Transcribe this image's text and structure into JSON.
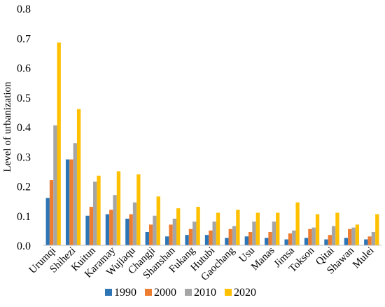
{
  "chart_data": {
    "type": "bar",
    "ylabel": "Level of urbanization",
    "ylim": [
      0,
      0.8
    ],
    "yticks": [
      "0.0",
      "0.1",
      "0.2",
      "0.3",
      "0.4",
      "0.5",
      "0.6",
      "0.7",
      "0.8"
    ],
    "grid": false,
    "legend_position": "bottom",
    "categories": [
      "Urumqi",
      "Shihezi",
      "Kuitun",
      "Karamay",
      "Wujiaqu",
      "Changji",
      "Shanshan",
      "Fukang",
      "Hutubi",
      "Gaochang",
      "Usu",
      "Manas",
      "Jimsa",
      "Tokson",
      "Qitai",
      "Shawan",
      "Mulei"
    ],
    "series": [
      {
        "name": "1990",
        "color": "#2e75b6",
        "values": [
          0.16,
          0.29,
          0.1,
          0.105,
          0.09,
          0.045,
          0.03,
          0.035,
          0.035,
          0.025,
          0.03,
          0.025,
          0.02,
          0.025,
          0.02,
          0.025,
          0.02
        ]
      },
      {
        "name": "2000",
        "color": "#ed7d31",
        "values": [
          0.22,
          0.29,
          0.13,
          0.12,
          0.105,
          0.07,
          0.07,
          0.055,
          0.05,
          0.055,
          0.045,
          0.045,
          0.04,
          0.055,
          0.035,
          0.055,
          0.03
        ]
      },
      {
        "name": "2010",
        "color": "#a5a5a5",
        "values": [
          0.405,
          0.345,
          0.215,
          0.17,
          0.145,
          0.1,
          0.09,
          0.08,
          0.08,
          0.065,
          0.08,
          0.08,
          0.05,
          0.06,
          0.065,
          0.06,
          0.045
        ]
      },
      {
        "name": "2020",
        "color": "#ffc000",
        "values": [
          0.685,
          0.46,
          0.235,
          0.25,
          0.24,
          0.165,
          0.125,
          0.13,
          0.11,
          0.12,
          0.11,
          0.11,
          0.145,
          0.105,
          0.11,
          0.07,
          0.105
        ]
      }
    ]
  }
}
